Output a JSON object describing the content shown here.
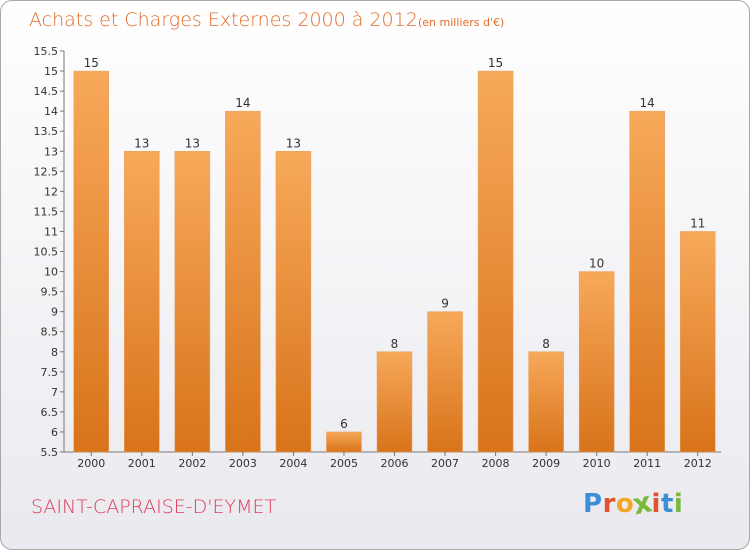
{
  "header": {
    "title": "Achats et Charges Externes 2000 à 2012",
    "unit_note": "(en milliers d'€)"
  },
  "footer": {
    "location": "SAINT-CAPRAISE-D'EYMET",
    "logo_letters": [
      "P",
      "r",
      "o",
      "x",
      "i",
      "t",
      "i"
    ]
  },
  "colors": {
    "bar": "#f0901f",
    "bar_light": "#f7a95a",
    "bar_dark": "#d8731a",
    "title": "#e06c2c",
    "location": "#e03a5a",
    "logo": [
      "#3b8fd6",
      "#e2522f",
      "#f5a623",
      "#7ab93a",
      "#e2522f",
      "#3b8fd6",
      "#7ab93a"
    ]
  },
  "chart_data": {
    "type": "bar",
    "categories": [
      "2000",
      "2001",
      "2002",
      "2003",
      "2004",
      "2005",
      "2006",
      "2007",
      "2008",
      "2009",
      "2010",
      "2011",
      "2012"
    ],
    "values": [
      15,
      13,
      13,
      14,
      13,
      6,
      8,
      9,
      15,
      8,
      10,
      14,
      11
    ],
    "ylim": [
      5.5,
      15.5
    ],
    "yticks": [
      "5.5",
      "6",
      "6.5",
      "7",
      "7.5",
      "8",
      "8.5",
      "9",
      "9.5",
      "10",
      "10.5",
      "11",
      "11.5",
      "12",
      "12.5",
      "13",
      "13.5",
      "14",
      "14.5",
      "15",
      "15.5"
    ],
    "ytick_labels": [
      "5.5",
      "6",
      "6.5",
      "7",
      "7.5",
      "8",
      "8.5",
      "9",
      "9.5",
      "10",
      "10.5",
      "11",
      "11.5",
      "12",
      "12.5",
      "13",
      "13.5",
      "14",
      "14.5",
      "15",
      "15.5"
    ],
    "data_labels": [
      "15",
      "13",
      "13",
      "14",
      "13",
      "6",
      "8",
      "9",
      "15",
      "8",
      "10",
      "14",
      "11"
    ],
    "grid": false
  }
}
